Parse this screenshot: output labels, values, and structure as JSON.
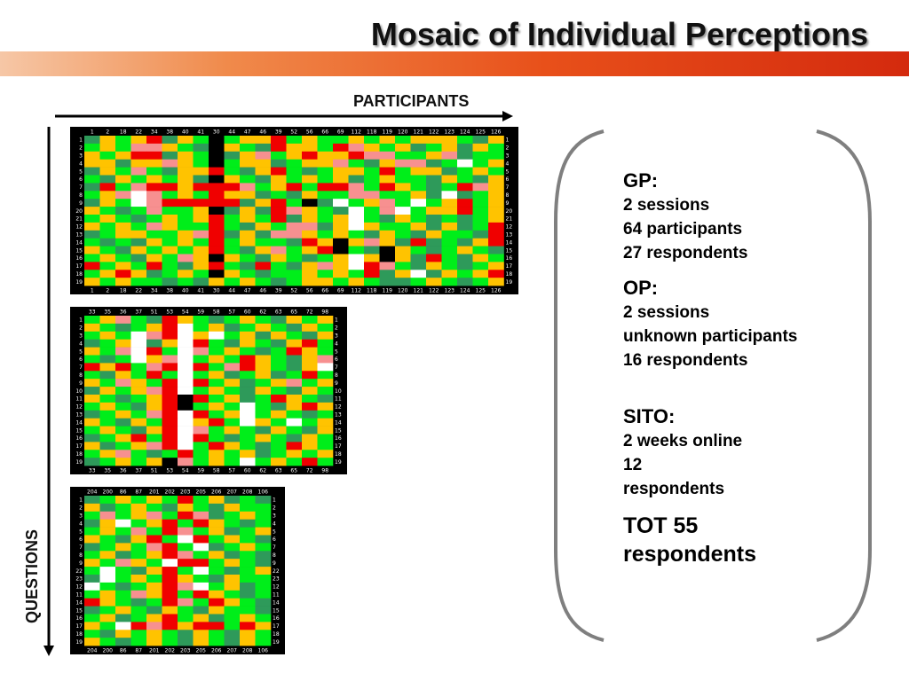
{
  "title": "Mosaic of Individual Perceptions",
  "participants_label": "PARTICIPANTS",
  "questions_label": "QUESTIONS",
  "colors": {
    "G": "#00ee1a",
    "D": "#2e9a5a",
    "Y": "#ffc300",
    "P": "#f79090",
    "R": "#f00000",
    "W": "#ffffff",
    "K": "#000000",
    "band_start": "#f6c7a6",
    "band_end": "#d42a0e"
  },
  "chart_data": [
    {
      "type": "heatmap",
      "columns": [
        "1",
        "2",
        "18",
        "22",
        "34",
        "38",
        "40",
        "41",
        "30",
        "44",
        "47",
        "46",
        "39",
        "52",
        "56",
        "66",
        "69",
        "112",
        "118",
        "119",
        "120",
        "121",
        "122",
        "123",
        "124",
        "125",
        "126"
      ],
      "rows": [
        "1",
        "2",
        "3",
        "4",
        "5",
        "6",
        "7",
        "8",
        "9",
        "20",
        "21",
        "12",
        "13",
        "14",
        "15",
        "16",
        "17",
        "18",
        "19"
      ],
      "cells": [
        "DYGYRDYGKGYYRGYGGYGYGYYYGDY",
        "GYGPPYGDKYGDRYYGRPYGYDGYDYG",
        "YGYRRDYGKDYPGYRYYRPPGGYPDGG",
        "YYDYYPYGKGYYDGYYPGDYPPDGWGY",
        "DYGPGDYYRGDYRGDGYYGRGYYDGYG",
        "GDYGYGYDKYGDYGYGYDGYGGDYGDY",
        "DRGPRRYRRRPGYRGRRPGRYGDGRPY",
        "GYPWPGYGRYYDGDYGGPPGGYDWDGY",
        "DYGWPRRRRRDYRGKDWGYPGWGYRGY",
        "YGDGPGGYKDYDRPYGDWGPWGYYRGY",
        "GYGDGYGYRGYGRDYGYWGDYGDGDGY",
        "YGYGPYGGRGDYGPPDYWYGGYDYDGR",
        "DGYYGGYPRDYDPPYGYGDYGDYGGDR",
        "GDGDYGYGRGYGGDRYKYPYDRDGDYR",
        "YGDYGYGYRGDYPGYRKGDKYGDGYGD",
        "GYGDYGPYKYGDYGDGYWYKYDRGDYG",
        "RGYGRGDYRGDRGDYPYWRPGDYGDGY",
        "GYRYDGYGKYGDGGYGYGRDYWDYGYR",
        "YGYGGDGDYGYGDGYYGYGDDGYGDGY"
      ]
    },
    {
      "type": "heatmap",
      "columns": [
        "33",
        "35",
        "36",
        "37",
        "51",
        "53",
        "54",
        "59",
        "58",
        "57",
        "60",
        "62",
        "63",
        "65",
        "72",
        "98"
      ],
      "rows": [
        "1",
        "2",
        "3",
        "4",
        "5",
        "6",
        "7",
        "8",
        "9",
        "10",
        "11",
        "12",
        "13",
        "14",
        "15",
        "16",
        "17",
        "18",
        "19"
      ],
      "cells": [
        "GYPGDRYGDGYGDYGY",
        "YGDGYRWGYDGYGDYG",
        "GYGWPRWYWGYDYGDY",
        "DGYWDYWRGDYGDYRG",
        "YGPWRGWPGYGDGRYG",
        "GDGWYPWGYGRYGDYP",
        "RYRGPRWRGPRYGDYW",
        "GDYGRGWGYDGYDGRG",
        "YGPYGRWRGYDGYPGY",
        "DYGYPRWGYGDYGDYG",
        "YGDGYRKRGYDGRYGD",
        "GYGDYRKGYGWGDYRY",
        "DGYGPRWRGYWGYGDG",
        "YGDYGRWYRGWYGWGY",
        "GYGDYRWPGYGDYGDY",
        "DGYRGRWRGDGYGDYG",
        "YDGYPRWGRYGDGRYG",
        "GYPGDGRGYGYDGYGY",
        "DGYGYKPGYGWGYGRG"
      ]
    },
    {
      "type": "heatmap",
      "columns": [
        "204",
        "200",
        "86",
        "87",
        "201",
        "202",
        "203",
        "205",
        "206",
        "207",
        "208",
        "106"
      ],
      "rows": [
        "1",
        "2",
        "3",
        "4",
        "5",
        "6",
        "7",
        "8",
        "9",
        "22",
        "23",
        "12",
        "11",
        "14",
        "15",
        "16",
        "17",
        "18",
        "19"
      ],
      "cells": [
        "DGYGYGRGYDGD",
        "YDGYGDYGDYGG",
        "GPGYPGRPDGYG",
        "DYWGYRGRYGDG",
        "GYGPGRPGYDGY",
        "YGDYRGWRGYGD",
        "DGYGPRGWDGYG",
        "GYDGYRPGYDGD",
        "YGPYGWRRGYGD",
        "GWGDYRGWGDGY",
        "DWGYGRYGDYGG",
        "WGDGYRPWGYDG",
        "GYGPYRGRYGDG",
        "RYGDGRPGRYGD",
        "DGYGDYGDYGGD",
        "GYDGYRGYDGYG",
        "YGWRPRYRRGRY",
        "GDYGYGDYGDYG",
        "YGDGYGDYGDYG"
      ]
    }
  ],
  "stats": {
    "gp": {
      "head": "GP:",
      "lines": [
        "2 sessions",
        "64 participants",
        "27 respondents"
      ]
    },
    "op": {
      "head": "OP:",
      "lines": [
        "2 sessions",
        "unknown participants",
        "16 respondents"
      ]
    },
    "sito": {
      "head": "SITO:",
      "lines": [
        "2 weeks online",
        "12",
        "respondents"
      ]
    },
    "total": [
      "TOT 55",
      "respondents"
    ]
  }
}
